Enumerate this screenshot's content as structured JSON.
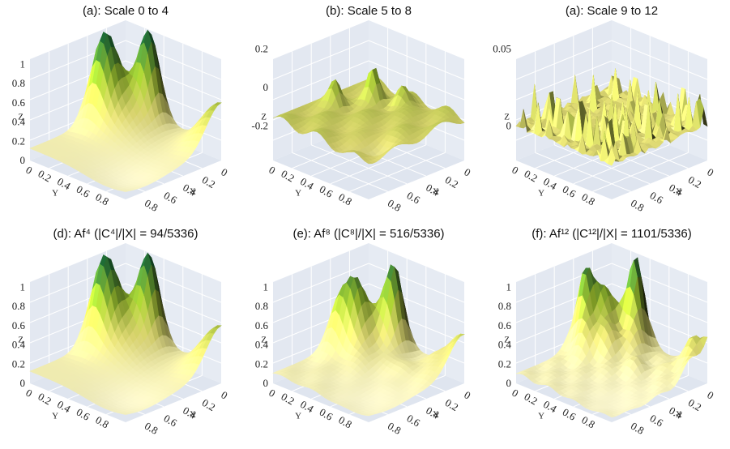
{
  "panels": [
    {
      "title": "(a): Scale 0 to 4",
      "z_label": "Z",
      "x_label": "X",
      "y_label": "Y",
      "z_ticks": [
        "1",
        "0.8",
        "0.6",
        "0.4",
        "0.2",
        "0"
      ],
      "x_ticks": [
        "0",
        "0.2",
        "0.4",
        "0.6",
        "0.8"
      ],
      "y_ticks": [
        "0",
        "0.2",
        "0.4",
        "0.6",
        "0.8"
      ]
    },
    {
      "title": "(b): Scale 5 to 8",
      "z_label": "Z",
      "x_label": "X",
      "y_label": "Y",
      "z_ticks": [
        "0.2",
        "0",
        "-0.2"
      ],
      "x_ticks": [
        "0",
        "0.2",
        "0.4",
        "0.6",
        "0.8"
      ],
      "y_ticks": [
        "0",
        "0.2",
        "0.4",
        "0.6",
        "0.8"
      ]
    },
    {
      "title": "(a): Scale 9 to 12",
      "z_label": "Z",
      "x_label": "X",
      "y_label": "Y",
      "z_ticks": [
        "0.05",
        "0"
      ],
      "x_ticks": [
        "0",
        "0.2",
        "0.4",
        "0.6",
        "0.8"
      ],
      "y_ticks": [
        "0",
        "0.2",
        "0.4",
        "0.6",
        "0.8"
      ]
    },
    {
      "title": "(d): Af⁴ (|C⁴|/|X| = 94/5336)",
      "z_label": "Z",
      "x_label": "X",
      "y_label": "Y",
      "z_ticks": [
        "1",
        "0.8",
        "0.6",
        "0.4",
        "0.2",
        "0"
      ],
      "x_ticks": [
        "0",
        "0.2",
        "0.4",
        "0.6",
        "0.8"
      ],
      "y_ticks": [
        "0",
        "0.2",
        "0.4",
        "0.6",
        "0.8"
      ]
    },
    {
      "title": "(e): Af⁸ (|C⁸|/|X| = 516/5336)",
      "z_label": "Z",
      "x_label": "X",
      "y_label": "Y",
      "z_ticks": [
        "1",
        "0.8",
        "0.6",
        "0.4",
        "0.2",
        "0"
      ],
      "x_ticks": [
        "0",
        "0.2",
        "0.4",
        "0.6",
        "0.8"
      ],
      "y_ticks": [
        "0",
        "0.2",
        "0.4",
        "0.6",
        "0.8"
      ]
    },
    {
      "title": "(f): Af¹² (|C¹²|/|X| = 1101/5336)",
      "z_label": "Z",
      "x_label": "X",
      "y_label": "Y",
      "z_ticks": [
        "1",
        "0.8",
        "0.6",
        "0.4",
        "0.2",
        "0"
      ],
      "x_ticks": [
        "0",
        "0.2",
        "0.4",
        "0.6",
        "0.8"
      ],
      "y_ticks": [
        "0",
        "0.2",
        "0.4",
        "0.6",
        "0.8"
      ]
    }
  ]
}
